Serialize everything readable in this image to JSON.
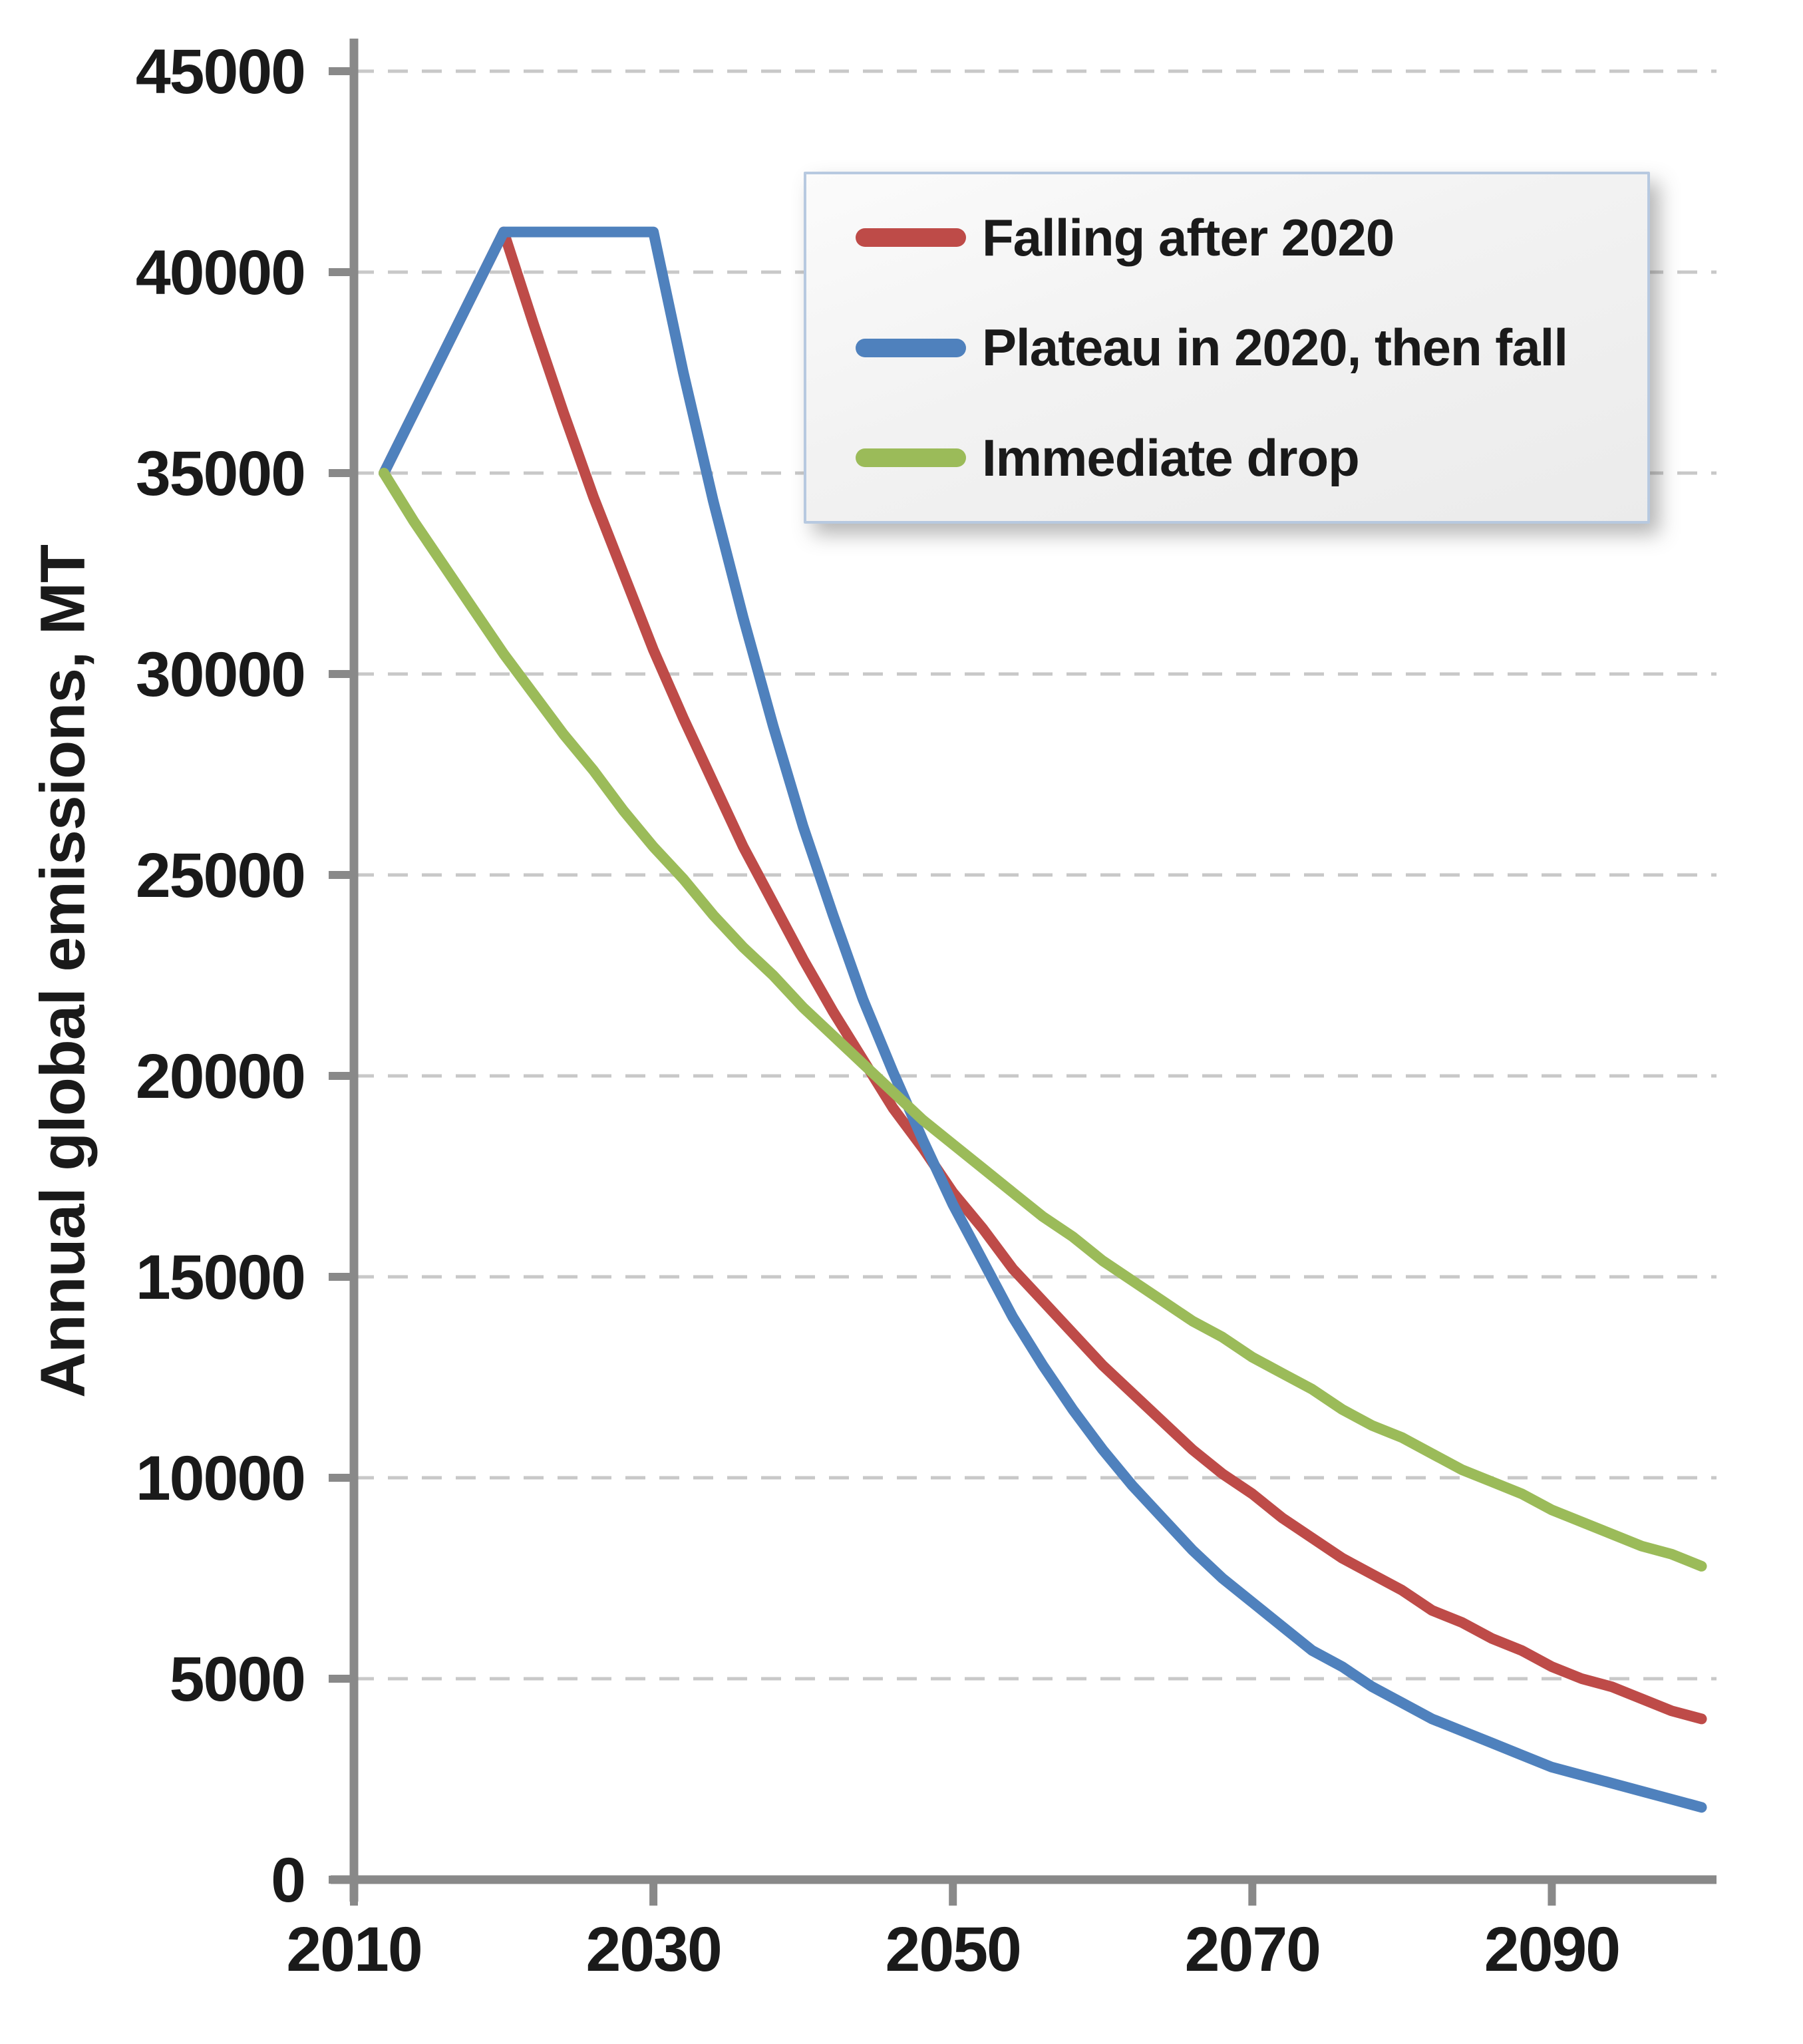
{
  "figure": {
    "y_axis_title": "Annual global emissions, MT"
  },
  "colors": {
    "axis": "#898989",
    "gridline": "#c8c8c8",
    "text": "#1a1a1a",
    "legend_border": "#b7c9e0",
    "legend_background": "#f2f2f2",
    "series_red": "#be4b48",
    "series_blue": "#4f81bd",
    "series_green": "#9bbb59"
  },
  "legend": {
    "position": "top-right-inside",
    "items": [
      {
        "label": "Falling after 2020",
        "color": "#be4b48"
      },
      {
        "label": "Plateau in 2020, then fall",
        "color": "#4f81bd"
      },
      {
        "label": "Immediate drop",
        "color": "#9bbb59"
      }
    ]
  },
  "chart_data": {
    "type": "line",
    "title": "",
    "xlabel": "",
    "ylabel": "Annual global emissions, MT",
    "xlim": [
      2010,
      2101
    ],
    "ylim": [
      0,
      45000
    ],
    "x_ticks": [
      2010,
      2030,
      2050,
      2070,
      2090
    ],
    "y_ticks": [
      0,
      5000,
      10000,
      15000,
      20000,
      25000,
      30000,
      35000,
      40000,
      45000
    ],
    "grid": "horizontal-dashed",
    "legend_position": "top-right-inside",
    "x": [
      2012,
      2014,
      2016,
      2018,
      2020,
      2022,
      2024,
      2026,
      2028,
      2030,
      2032,
      2034,
      2036,
      2038,
      2040,
      2042,
      2044,
      2046,
      2048,
      2050,
      2052,
      2054,
      2056,
      2058,
      2060,
      2062,
      2064,
      2066,
      2068,
      2070,
      2072,
      2074,
      2076,
      2078,
      2080,
      2082,
      2084,
      2086,
      2088,
      2090,
      2092,
      2094,
      2096,
      2098,
      2100
    ],
    "series": [
      {
        "name": "Falling after 2020",
        "color": "#be4b48",
        "y": [
          35000,
          36500,
          38000,
          39500,
          41000,
          38700,
          36500,
          34400,
          32500,
          30600,
          28900,
          27300,
          25700,
          24300,
          22900,
          21600,
          20400,
          19200,
          18200,
          17100,
          16200,
          15200,
          14400,
          13600,
          12800,
          12100,
          11400,
          10700,
          10100,
          9600,
          9000,
          8500,
          8000,
          7600,
          7200,
          6700,
          6400,
          6000,
          5700,
          5300,
          5000,
          4800,
          4500,
          4200,
          4000
        ]
      },
      {
        "name": "Plateau in 2020, then fall",
        "color": "#4f81bd",
        "y": [
          35000,
          36500,
          38000,
          39500,
          41000,
          41000,
          41000,
          41000,
          41000,
          41000,
          37500,
          34300,
          31400,
          28700,
          26200,
          24000,
          21900,
          20100,
          18400,
          16800,
          15400,
          14000,
          12800,
          11700,
          10700,
          9800,
          9000,
          8200,
          7500,
          6900,
          6300,
          5700,
          5300,
          4800,
          4400,
          4000,
          3700,
          3400,
          3100,
          2800,
          2600,
          2400,
          2200,
          2000,
          1800
        ]
      },
      {
        "name": "Immediate drop",
        "color": "#9bbb59",
        "y": [
          35000,
          33800,
          32700,
          31600,
          30500,
          29500,
          28500,
          27600,
          26600,
          25700,
          24900,
          24000,
          23200,
          22500,
          21700,
          21000,
          20300,
          19600,
          18900,
          18300,
          17700,
          17100,
          16500,
          16000,
          15400,
          14900,
          14400,
          13900,
          13500,
          13000,
          12600,
          12200,
          11700,
          11300,
          11000,
          10600,
          10200,
          9900,
          9600,
          9200,
          8900,
          8600,
          8300,
          8100,
          7800
        ]
      }
    ]
  }
}
